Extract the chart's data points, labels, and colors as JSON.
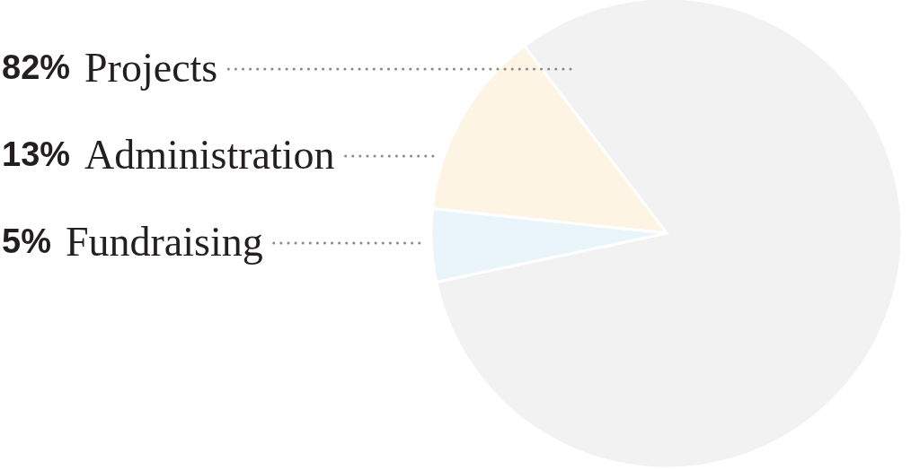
{
  "chart_data": {
    "type": "pie",
    "categories": [
      "Projects",
      "Administration",
      "Fundraising"
    ],
    "values": [
      82,
      13,
      5
    ],
    "colors": [
      "#f2f2f2",
      "#fdf4e3",
      "#eaf4fb"
    ],
    "value_labels": [
      "82%",
      "13%",
      "5%"
    ]
  }
}
